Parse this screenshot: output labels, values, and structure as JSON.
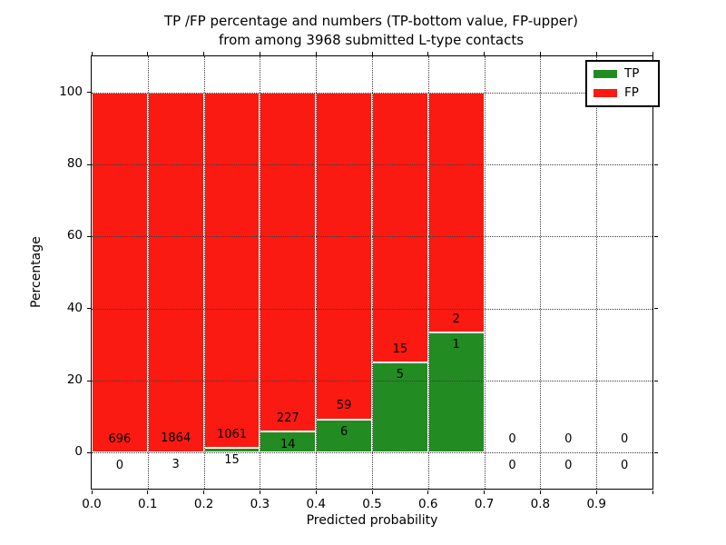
{
  "title": {
    "line1": "TP /FP percentage and numbers (TP-bottom value, FP-upper)",
    "line2": "from among 3968 submitted L-type contacts"
  },
  "x_axis": {
    "label": "Predicted probability",
    "tick_labels": [
      "0.0",
      "0.1",
      "0.2",
      "0.3",
      "0.4",
      "0.5",
      "0.6",
      "0.7",
      "0.8",
      "0.9"
    ]
  },
  "y_axis": {
    "label": "Percentage",
    "tick_labels": [
      "0",
      "20",
      "40",
      "60",
      "80",
      "100"
    ],
    "tick_values": [
      0,
      20,
      40,
      60,
      80,
      100
    ]
  },
  "legend": {
    "entries": [
      {
        "label": "TP",
        "color": "#228b22"
      },
      {
        "label": "FP",
        "color": "#fa1a12"
      }
    ]
  },
  "colors": {
    "tp": "#228b22",
    "fp": "#fa1a12",
    "grid": "#3c3c3c",
    "axis": "#000000",
    "background": "#ffffff"
  },
  "chart_data": {
    "type": "bar",
    "stacked": true,
    "title": "TP /FP percentage and numbers (TP-bottom value, FP-upper) from among 3968 submitted L-type contacts",
    "xlabel": "Predicted probability",
    "ylabel": "Percentage",
    "xlim": [
      0.0,
      1.0
    ],
    "ylim": [
      -10,
      110
    ],
    "grid": true,
    "grid_style": "dotted",
    "legend_position": "upper right",
    "bin_width": 0.1,
    "total_contacts": 3968,
    "annotation_note": "TP count printed below the TP/FP boundary, FP count printed above it",
    "categories": [
      "0.0-0.1",
      "0.1-0.2",
      "0.2-0.3",
      "0.3-0.4",
      "0.4-0.5",
      "0.5-0.6",
      "0.6-0.7",
      "0.7-0.8",
      "0.8-0.9",
      "0.9-1.0"
    ],
    "series": [
      {
        "name": "TP",
        "counts": [
          0,
          3,
          15,
          14,
          6,
          5,
          1,
          0,
          0,
          0
        ]
      },
      {
        "name": "FP",
        "counts": [
          696,
          1864,
          1061,
          227,
          59,
          15,
          2,
          0,
          0,
          0
        ]
      }
    ],
    "bins": [
      {
        "x_start": 0.0,
        "x_end": 0.1,
        "tp_count": 0,
        "fp_count": 696,
        "tp_pct": 0.0,
        "fp_pct": 100.0
      },
      {
        "x_start": 0.1,
        "x_end": 0.2,
        "tp_count": 3,
        "fp_count": 1864,
        "tp_pct": 0.16,
        "fp_pct": 99.84
      },
      {
        "x_start": 0.2,
        "x_end": 0.3,
        "tp_count": 15,
        "fp_count": 1061,
        "tp_pct": 1.39,
        "fp_pct": 98.61
      },
      {
        "x_start": 0.3,
        "x_end": 0.4,
        "tp_count": 14,
        "fp_count": 227,
        "tp_pct": 5.81,
        "fp_pct": 94.19
      },
      {
        "x_start": 0.4,
        "x_end": 0.5,
        "tp_count": 6,
        "fp_count": 59,
        "tp_pct": 9.23,
        "fp_pct": 90.77
      },
      {
        "x_start": 0.5,
        "x_end": 0.6,
        "tp_count": 5,
        "fp_count": 15,
        "tp_pct": 25.0,
        "fp_pct": 75.0
      },
      {
        "x_start": 0.6,
        "x_end": 0.7,
        "tp_count": 1,
        "fp_count": 2,
        "tp_pct": 33.33,
        "fp_pct": 66.67
      },
      {
        "x_start": 0.7,
        "x_end": 0.8,
        "tp_count": 0,
        "fp_count": 0,
        "tp_pct": 0.0,
        "fp_pct": 0.0
      },
      {
        "x_start": 0.8,
        "x_end": 0.9,
        "tp_count": 0,
        "fp_count": 0,
        "tp_pct": 0.0,
        "fp_pct": 0.0
      },
      {
        "x_start": 0.9,
        "x_end": 1.0,
        "tp_count": 0,
        "fp_count": 0,
        "tp_pct": 0.0,
        "fp_pct": 0.0
      }
    ]
  }
}
